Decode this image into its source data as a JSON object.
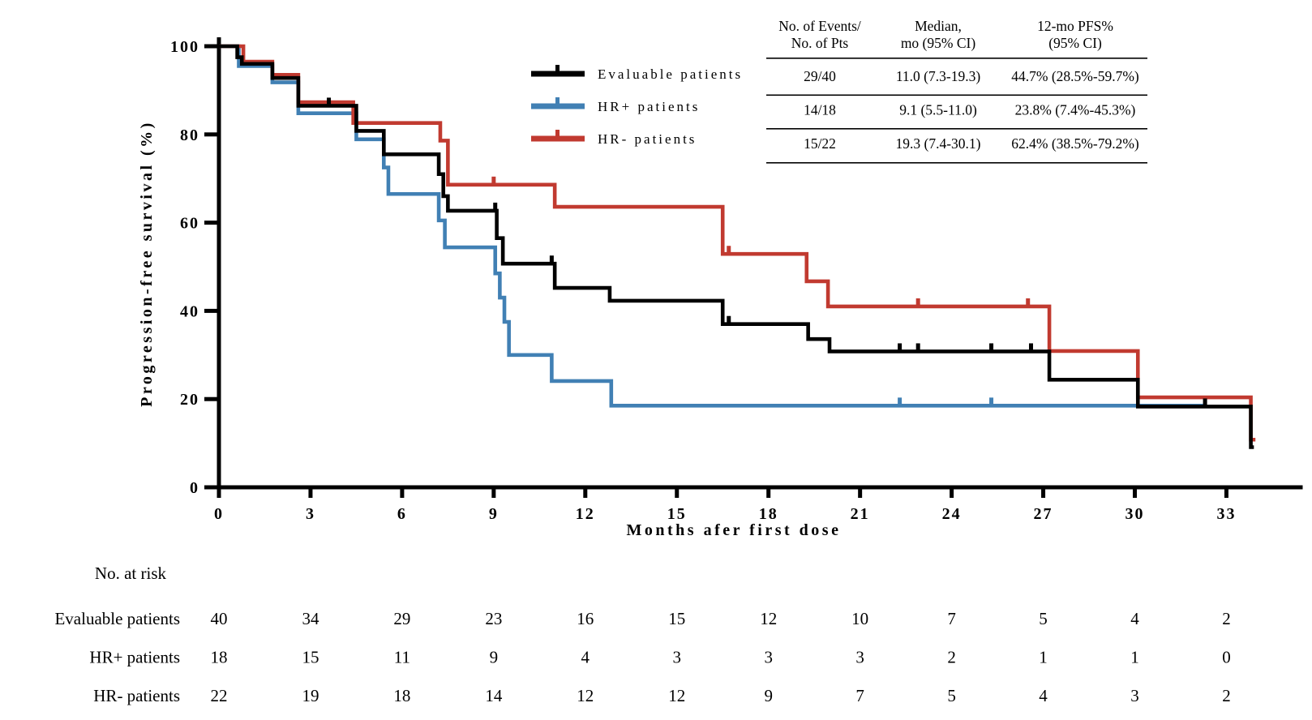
{
  "chart_data": {
    "type": "line",
    "subtype": "kaplan-meier-step",
    "title": "",
    "xlabel": "Months afer first dose",
    "ylabel": "Progression-free survival (%)",
    "xlim": [
      0,
      35.5
    ],
    "ylim": [
      0,
      100
    ],
    "x_ticks": [
      0,
      3,
      6,
      9,
      12,
      15,
      18,
      21,
      24,
      27,
      30,
      33
    ],
    "y_ticks": [
      0,
      20,
      40,
      60,
      80,
      100
    ],
    "grid": false,
    "legend_position": "upper-center-left",
    "series": [
      {
        "name": "Evaluable patients",
        "color": "#000000",
        "step_points": [
          [
            0,
            100
          ],
          [
            0.6,
            97.5
          ],
          [
            0.75,
            96
          ],
          [
            1.75,
            92.8
          ],
          [
            2.6,
            86.5
          ],
          [
            4.5,
            80.8
          ],
          [
            5.4,
            75.5
          ],
          [
            7.2,
            71
          ],
          [
            7.35,
            66
          ],
          [
            7.5,
            62.7
          ],
          [
            9.1,
            56.5
          ],
          [
            9.3,
            50.7
          ],
          [
            11,
            45.2
          ],
          [
            12.8,
            42.3
          ],
          [
            16.5,
            37
          ],
          [
            19.3,
            33.6
          ],
          [
            20,
            30.8
          ],
          [
            27.2,
            24.4
          ],
          [
            30.1,
            18.3
          ],
          [
            33.8,
            9.1
          ]
        ],
        "end_month": 33.9,
        "censor_marks": [
          [
            3.6,
            86.5
          ],
          [
            9.05,
            62.7
          ],
          [
            10.9,
            50.7
          ],
          [
            16.7,
            37
          ],
          [
            22.3,
            30.8
          ],
          [
            22.9,
            30.8
          ],
          [
            25.3,
            30.8
          ],
          [
            26.6,
            30.8
          ],
          [
            32.3,
            18.3
          ]
        ]
      },
      {
        "name": "HR+ patients",
        "color": "#4180b4",
        "step_points": [
          [
            0,
            100
          ],
          [
            0.65,
            95.5
          ],
          [
            1.75,
            91.8
          ],
          [
            2.6,
            84.8
          ],
          [
            4.5,
            78.9
          ],
          [
            5.4,
            72.5
          ],
          [
            5.55,
            66.5
          ],
          [
            7.2,
            60.5
          ],
          [
            7.4,
            54.4
          ],
          [
            9.05,
            48.5
          ],
          [
            9.2,
            43
          ],
          [
            9.35,
            37.5
          ],
          [
            9.5,
            30
          ],
          [
            10.9,
            24.1
          ],
          [
            12.85,
            18.5
          ]
        ],
        "end_month": 32.3,
        "censor_marks": [
          [
            22.3,
            18.5
          ],
          [
            25.3,
            18.5
          ]
        ]
      },
      {
        "name": "HR- patients",
        "color": "#c13a30",
        "step_points": [
          [
            0,
            100
          ],
          [
            0.8,
            96.5
          ],
          [
            1.75,
            93.5
          ],
          [
            2.6,
            87.3
          ],
          [
            4.4,
            82.6
          ],
          [
            7.25,
            78.6
          ],
          [
            7.5,
            68.6
          ],
          [
            11,
            63.6
          ],
          [
            16.5,
            52.9
          ],
          [
            19.25,
            46.7
          ],
          [
            19.95,
            41
          ],
          [
            27.2,
            30.9
          ],
          [
            30.1,
            20.4
          ],
          [
            33.8,
            10.8
          ]
        ],
        "end_month": 33.95,
        "censor_marks": [
          [
            9.0,
            68.6
          ],
          [
            16.7,
            52.9
          ],
          [
            22.9,
            41
          ],
          [
            26.5,
            41
          ]
        ]
      }
    ]
  },
  "legend": {
    "items": [
      {
        "label": "Evaluable patients",
        "color": "#000000"
      },
      {
        "label": "HR+ patients",
        "color": "#4180b4"
      },
      {
        "label": "HR- patients",
        "color": "#c13a30"
      }
    ]
  },
  "stats_table": {
    "col_headers": [
      [
        "No. of Events/",
        "No. of Pts"
      ],
      [
        "Median,",
        "mo (95% CI)"
      ],
      [
        "12-mo PFS%",
        "(95% CI)"
      ]
    ],
    "rows": [
      [
        "29/40",
        "11.0 (7.3-19.3)",
        "44.7% (28.5%-59.7%)"
      ],
      [
        "14/18",
        "9.1 (5.5-11.0)",
        "23.8% (7.4%-45.3%)"
      ],
      [
        "15/22",
        "19.3 (7.4-30.1)",
        "62.4% (38.5%-79.2%)"
      ]
    ]
  },
  "risk_table": {
    "title": "No. at risk",
    "months": [
      0,
      3,
      6,
      9,
      12,
      15,
      18,
      21,
      24,
      27,
      30,
      33
    ],
    "rows": [
      {
        "label": "Evaluable patients",
        "counts": [
          40,
          34,
          29,
          23,
          16,
          15,
          12,
          10,
          7,
          5,
          4,
          2
        ]
      },
      {
        "label": "HR+ patients",
        "counts": [
          18,
          15,
          11,
          9,
          4,
          3,
          3,
          3,
          2,
          1,
          1,
          0
        ]
      },
      {
        "label": "HR- patients",
        "counts": [
          22,
          19,
          18,
          14,
          12,
          12,
          9,
          7,
          5,
          4,
          3,
          2
        ]
      }
    ]
  }
}
